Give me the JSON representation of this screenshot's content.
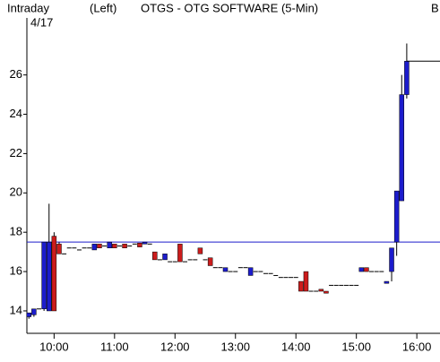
{
  "chart_data": {
    "type": "candlestick",
    "header": {
      "period": "Intraday",
      "date": "4/17",
      "side": "(Left)",
      "title": "OTGS - OTG SOFTWARE (5-Min)",
      "right": "B"
    },
    "x": [
      575,
      580,
      585,
      590,
      595,
      600,
      605,
      610,
      615,
      620,
      625,
      630,
      635,
      640,
      645,
      650,
      655,
      660,
      665,
      670,
      675,
      680,
      685,
      690,
      695,
      700,
      705,
      710,
      715,
      720,
      725,
      730,
      735,
      740,
      745,
      750,
      755,
      760,
      765,
      770,
      775,
      780,
      785,
      790,
      795,
      800,
      805,
      810,
      815,
      820,
      825,
      830,
      835,
      840,
      845,
      850,
      855,
      860,
      865,
      870,
      875,
      880,
      885,
      890,
      895,
      900,
      905,
      910,
      915,
      920,
      925,
      930,
      935,
      940,
      945,
      950
    ],
    "open": [
      13.7,
      13.8,
      14.1,
      14.1,
      14.0,
      17.8,
      17.4,
      16.9,
      17.2,
      17.2,
      17.1,
      17.2,
      17.2,
      17.1,
      17.4,
      17.3,
      17.2,
      17.4,
      17.3,
      17.4,
      17.3,
      17.4,
      17.45,
      17.4,
      17.4,
      17.0,
      16.6,
      16.6,
      16.5,
      16.5,
      17.4,
      16.5,
      16.6,
      16.6,
      17.2,
      16.6,
      16.7,
      16.2,
      16.2,
      16.0,
      16.0,
      16.0,
      16.2,
      16.2,
      15.8,
      16.0,
      16.0,
      15.9,
      15.9,
      15.8,
      15.7,
      15.7,
      15.7,
      15.7,
      15.5,
      16.0,
      15.0,
      15.0,
      15.1,
      15.0,
      15.3,
      15.3,
      15.3,
      15.3,
      15.3,
      15.3,
      16.0,
      16.2,
      16.0,
      16.0,
      16.0,
      15.4,
      16.0,
      17.5,
      19.6,
      25.0
    ],
    "high": [
      13.9,
      14.1,
      14.1,
      17.5,
      19.45,
      18.0,
      17.5,
      16.9,
      17.2,
      17.2,
      17.1,
      17.2,
      17.2,
      17.4,
      17.4,
      17.3,
      17.5,
      17.4,
      17.3,
      17.4,
      17.3,
      17.4,
      17.45,
      17.5,
      17.4,
      17.0,
      16.6,
      16.9,
      16.5,
      16.5,
      17.4,
      16.5,
      16.6,
      16.6,
      17.2,
      16.6,
      16.7,
      16.2,
      16.2,
      16.2,
      16.0,
      16.0,
      16.2,
      16.2,
      16.2,
      16.0,
      16.0,
      15.9,
      15.9,
      15.8,
      15.7,
      15.7,
      15.7,
      15.7,
      15.5,
      16.0,
      15.0,
      15.0,
      15.1,
      15.0,
      15.3,
      15.3,
      15.3,
      15.3,
      15.3,
      15.3,
      16.2,
      16.2,
      16.0,
      16.0,
      16.0,
      15.5,
      17.2,
      20.1,
      26.0,
      27.6
    ],
    "low": [
      13.6,
      13.7,
      14.1,
      14.0,
      14.0,
      14.0,
      16.9,
      16.9,
      17.2,
      17.2,
      17.1,
      17.2,
      17.2,
      17.1,
      17.2,
      17.3,
      17.2,
      17.2,
      17.3,
      17.2,
      17.3,
      17.4,
      17.25,
      17.4,
      17.4,
      16.6,
      16.6,
      16.6,
      16.5,
      16.5,
      16.5,
      16.5,
      16.6,
      16.6,
      16.9,
      16.6,
      16.3,
      16.2,
      16.2,
      16.0,
      16.0,
      16.0,
      16.2,
      16.2,
      15.8,
      16.0,
      16.0,
      15.9,
      15.9,
      15.8,
      15.7,
      15.7,
      15.7,
      15.7,
      15.0,
      15.0,
      15.0,
      15.0,
      15.0,
      14.9,
      15.3,
      15.3,
      15.3,
      15.3,
      15.3,
      15.3,
      16.0,
      16.0,
      16.0,
      16.0,
      16.0,
      15.4,
      15.5,
      16.8,
      19.6,
      24.8
    ],
    "close": [
      13.9,
      14.1,
      14.1,
      17.5,
      17.5,
      14.0,
      16.9,
      16.9,
      17.2,
      17.2,
      17.1,
      17.2,
      17.2,
      17.4,
      17.2,
      17.3,
      17.5,
      17.2,
      17.3,
      17.2,
      17.3,
      17.4,
      17.25,
      17.5,
      17.4,
      16.6,
      16.6,
      16.9,
      16.5,
      16.5,
      16.5,
      16.5,
      16.6,
      16.6,
      16.9,
      16.6,
      16.3,
      16.2,
      16.2,
      16.2,
      16.0,
      16.0,
      16.2,
      16.2,
      16.2,
      16.0,
      16.0,
      15.9,
      15.9,
      15.8,
      15.7,
      15.7,
      15.7,
      15.7,
      15.0,
      15.0,
      15.0,
      15.0,
      15.0,
      14.9,
      15.3,
      15.3,
      15.3,
      15.3,
      15.3,
      15.3,
      16.2,
      16.0,
      16.0,
      16.0,
      16.0,
      15.5,
      17.2,
      20.1,
      25.0,
      26.7
    ],
    "up_color": "#1c1ccc",
    "down_color": "#cc1c1c",
    "flat_color": "#000000",
    "reference_line": 17.5,
    "reference_color": "#1c1ccc",
    "xlim": [
      573,
      983
    ],
    "ylim": [
      12.95,
      28.9
    ],
    "xticks": [
      {
        "value": 600,
        "label": "10:00"
      },
      {
        "value": 660,
        "label": "11:00"
      },
      {
        "value": 720,
        "label": "12:00"
      },
      {
        "value": 780,
        "label": "13:00"
      },
      {
        "value": 840,
        "label": "14:00"
      },
      {
        "value": 900,
        "label": "15:00"
      },
      {
        "value": 960,
        "label": "16:00"
      }
    ],
    "yticks": [
      14,
      16,
      18,
      20,
      22,
      24,
      26
    ]
  }
}
